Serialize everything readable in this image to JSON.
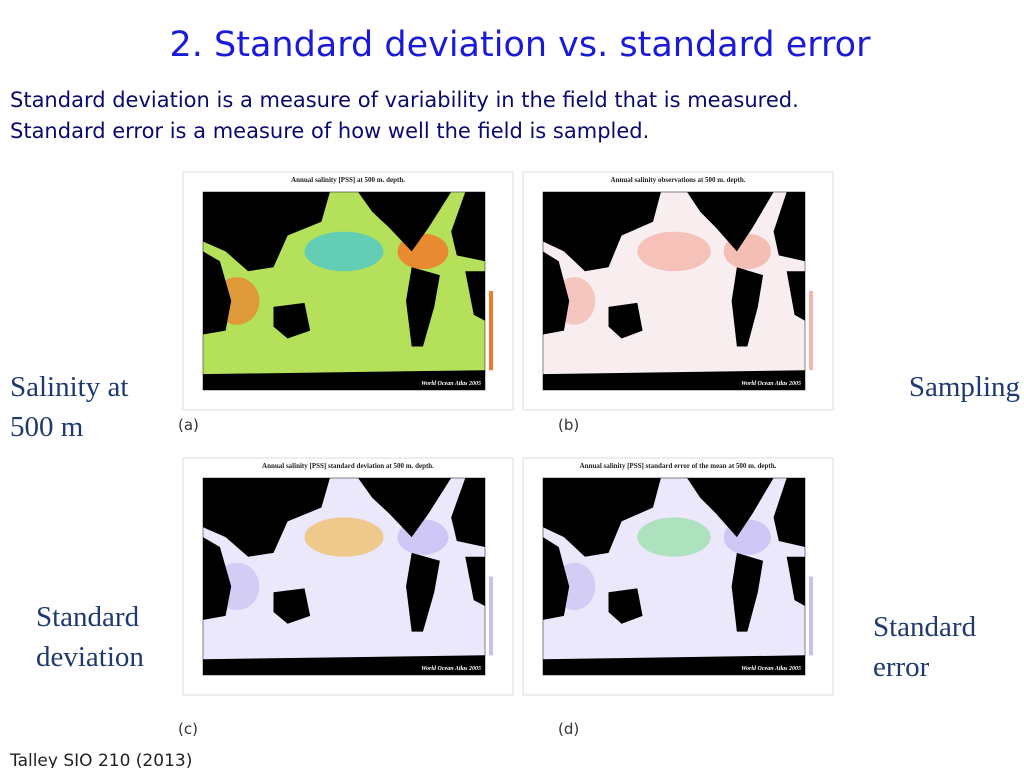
{
  "title": "2. Standard deviation vs. standard error",
  "body": [
    "Standard deviation is a measure of variability in the field that is measured.",
    "Standard error is a measure of how well the field is sampled."
  ],
  "panels": [
    {
      "letter": "(a)",
      "map_title": "Annual salinity [PSS] at 500 m. depth.",
      "credit": "World Ocean Atlas 2005",
      "label": [
        "Salinity at",
        "500 m"
      ]
    },
    {
      "letter": "(b)",
      "map_title": "Annual salinity observations at 500 m. depth.",
      "credit": "World Ocean Atlas 2005",
      "label": [
        "Sampling"
      ]
    },
    {
      "letter": "(c)",
      "map_title": "Annual salinity [PSS] standard deviation at 500 m. depth.",
      "credit": "World Ocean Atlas 2005",
      "label": [
        "Standard",
        "deviation"
      ]
    },
    {
      "letter": "(d)",
      "map_title": "Annual salinity [PSS] standard error of the mean at 500 m. depth.",
      "credit": "World Ocean Atlas 2005",
      "label": [
        "Standard",
        "error"
      ]
    }
  ],
  "footer": "Talley SIO 210 (2013)"
}
